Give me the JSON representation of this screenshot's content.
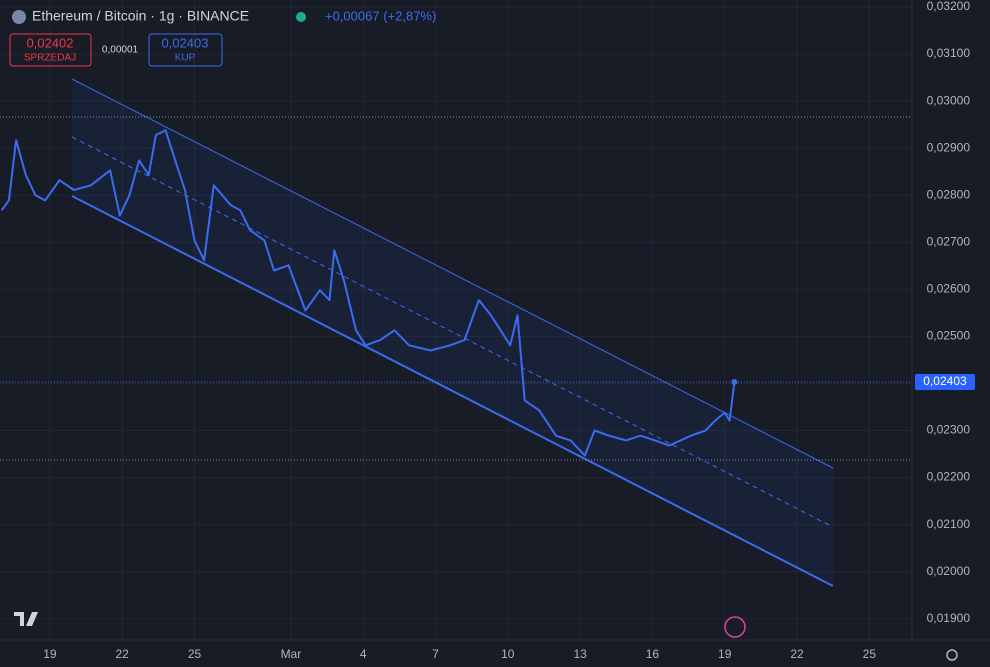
{
  "chart_data": {
    "type": "line",
    "title": "Ethereum / Bitcoin · 1g · BINANCE",
    "change": "+0,00067 (+2,87%)",
    "sell": {
      "price": "0,02402",
      "label": "SPRZEDAJ"
    },
    "spread": "0,00001",
    "buy": {
      "price": "0,02403",
      "label": "KUP"
    },
    "price_label": "0,02403",
    "x": [
      -2.0,
      -1.7,
      -1.4,
      -1.0,
      -0.6,
      -0.2,
      0.4,
      1.0,
      1.7,
      2.5,
      2.9,
      3.3,
      3.7,
      4.1,
      4.4,
      4.8,
      5.2,
      5.6,
      6.0,
      6.4,
      6.8,
      7.5,
      7.9,
      8.3,
      8.9,
      9.3,
      9.9,
      10.6,
      11.2,
      11.6,
      11.8,
      12.2,
      12.7,
      13.1,
      13.7,
      14.3,
      14.9,
      15.8,
      16.6,
      17.2,
      17.8,
      18.3,
      18.7,
      19.1,
      19.4,
      19.7,
      20.3,
      21.0,
      21.6,
      22.2,
      22.6,
      23.2,
      23.9,
      24.5,
      25.1,
      25.7,
      26.6,
      27.2,
      27.6,
      28.0,
      28.2,
      28.4
    ],
    "series": [
      {
        "name": "ETHBTC",
        "color": "#3b6cf0",
        "values": [
          0.02768,
          0.02789,
          0.02917,
          0.02843,
          0.028,
          0.02789,
          0.02832,
          0.02811,
          0.02821,
          0.02853,
          0.02757,
          0.028,
          0.02874,
          0.02843,
          0.02928,
          0.02938,
          0.02874,
          0.02811,
          0.02704,
          0.02662,
          0.02821,
          0.02779,
          0.02768,
          0.02726,
          0.02704,
          0.0264,
          0.02651,
          0.02555,
          0.02598,
          0.02577,
          0.02683,
          0.02619,
          0.02513,
          0.02481,
          0.02492,
          0.02513,
          0.02481,
          0.0247,
          0.02481,
          0.02492,
          0.02577,
          0.02545,
          0.02513,
          0.02481,
          0.02545,
          0.02364,
          0.02343,
          0.02289,
          0.02279,
          0.02247,
          0.023,
          0.02289,
          0.02279,
          0.02289,
          0.02279,
          0.02268,
          0.02289,
          0.023,
          0.02321,
          0.02338,
          0.02321,
          0.02403
        ]
      }
    ],
    "xlim": [
      -2.07,
      35.77
    ],
    "xticks": [
      {
        "value": 0,
        "label": "19"
      },
      {
        "value": 3,
        "label": "22"
      },
      {
        "value": 6,
        "label": "25"
      },
      {
        "value": 10,
        "label": "Mar"
      },
      {
        "value": 13,
        "label": "4"
      },
      {
        "value": 16,
        "label": "7"
      },
      {
        "value": 19,
        "label": "10"
      },
      {
        "value": 22,
        "label": "13"
      },
      {
        "value": 25,
        "label": "16"
      },
      {
        "value": 28,
        "label": "19"
      },
      {
        "value": 31,
        "label": "22"
      },
      {
        "value": 34,
        "label": "25"
      }
    ],
    "ylim": [
      0.018951,
      0.032149
    ],
    "yticks": [
      {
        "value": 0.032,
        "label": "0,03200"
      },
      {
        "value": 0.031,
        "label": "0,03100"
      },
      {
        "value": 0.03,
        "label": "0,03000"
      },
      {
        "value": 0.029,
        "label": "0,02900"
      },
      {
        "value": 0.028,
        "label": "0,02800"
      },
      {
        "value": 0.027,
        "label": "0,02700"
      },
      {
        "value": 0.026,
        "label": "0,02600"
      },
      {
        "value": 0.025,
        "label": "0,02500"
      },
      {
        "value": 0.024,
        "label": "0,02400"
      },
      {
        "value": 0.023,
        "label": "0,02300"
      },
      {
        "value": 0.022,
        "label": "0,02200"
      },
      {
        "value": 0.021,
        "label": "0,02100"
      },
      {
        "value": 0.02,
        "label": "0,02000"
      },
      {
        "value": 0.019,
        "label": "0,01900"
      }
    ],
    "grid": true
  }
}
